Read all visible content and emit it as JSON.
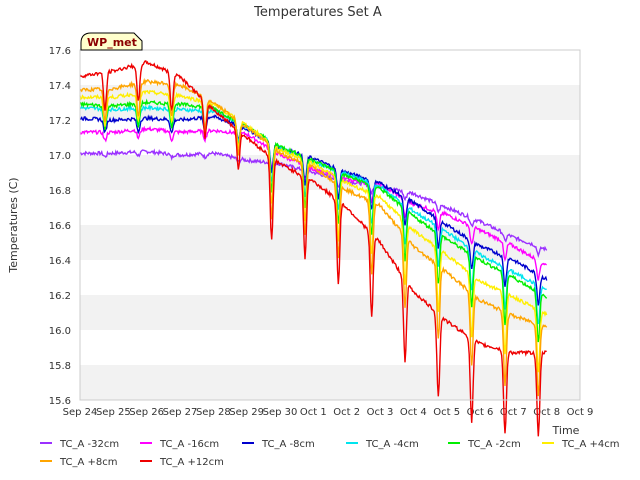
{
  "chart_data": {
    "type": "line",
    "title": "Temperatures Set A",
    "xlabel": "Time",
    "ylabel": "Temperatures (C)",
    "badge": "WP_met",
    "ylim": [
      15.6,
      17.6
    ],
    "yticks": [
      15.6,
      15.8,
      16.0,
      16.2,
      16.4,
      16.6,
      16.8,
      17.0,
      17.2,
      17.4,
      17.6
    ],
    "xlim": [
      "Sep 24",
      "Oct 9"
    ],
    "xtick_labels": [
      "Sep 24",
      "Sep 25",
      "Sep 26",
      "Sep 27",
      "Sep 28",
      "Sep 29",
      "Sep 30",
      "Oct 1",
      "Oct 2",
      "Oct 3",
      "Oct 4",
      "Oct 5",
      "Oct 6",
      "Oct 7",
      "Oct 8",
      "Oct 9"
    ],
    "grid": "horizontal bands",
    "legend_position": "bottom",
    "x_dates": [
      "Sep 24",
      "Sep 25",
      "Sep 26",
      "Sep 27",
      "Sep 28",
      "Sep 29",
      "Sep 30",
      "Oct 1",
      "Oct 2",
      "Oct 3",
      "Oct 4",
      "Oct 5",
      "Oct 6",
      "Oct 7",
      "Oct 8"
    ],
    "series": [
      {
        "name": "TC_A -32cm",
        "color": "#9b30ff",
        "values": [
          17.01,
          17.01,
          17.02,
          17.0,
          17.01,
          16.97,
          16.95,
          16.9,
          16.85,
          16.82,
          16.78,
          16.7,
          16.62,
          16.53,
          16.46
        ]
      },
      {
        "name": "TC_A -16cm",
        "color": "#ff00ff",
        "values": [
          17.13,
          17.13,
          17.15,
          17.13,
          17.14,
          17.12,
          17.0,
          16.92,
          16.86,
          16.83,
          16.72,
          16.66,
          16.57,
          16.48,
          16.37
        ]
      },
      {
        "name": "TC_A -8cm",
        "color": "#0000cd",
        "values": [
          17.21,
          17.2,
          17.21,
          17.2,
          17.22,
          17.15,
          17.04,
          16.98,
          16.9,
          16.84,
          16.73,
          16.6,
          16.48,
          16.4,
          16.29
        ]
      },
      {
        "name": "TC_A -4cm",
        "color": "#00e5ee",
        "values": [
          17.27,
          17.26,
          17.27,
          17.26,
          17.25,
          17.16,
          17.04,
          16.96,
          16.89,
          16.82,
          16.68,
          16.56,
          16.43,
          16.33,
          16.23
        ]
      },
      {
        "name": "TC_A -2cm",
        "color": "#00ee00",
        "values": [
          17.29,
          17.28,
          17.3,
          17.29,
          17.27,
          17.16,
          17.05,
          16.97,
          16.88,
          16.81,
          16.65,
          16.52,
          16.4,
          16.3,
          16.19
        ]
      },
      {
        "name": "TC_A +4cm",
        "color": "#ffee00",
        "values": [
          17.33,
          17.33,
          17.36,
          17.34,
          17.29,
          17.17,
          17.03,
          16.95,
          16.84,
          16.76,
          16.57,
          16.43,
          16.28,
          16.19,
          16.09
        ]
      },
      {
        "name": "TC_A +8cm",
        "color": "#ffa500",
        "values": [
          17.37,
          17.38,
          17.42,
          17.4,
          17.3,
          17.16,
          17.01,
          16.93,
          16.8,
          16.71,
          16.48,
          16.33,
          16.17,
          16.08,
          16.02
        ]
      },
      {
        "name": "TC_A +12cm",
        "color": "#ee0000",
        "values": [
          17.45,
          17.48,
          17.53,
          17.45,
          17.26,
          17.1,
          16.95,
          16.85,
          16.7,
          16.5,
          16.22,
          16.05,
          15.92,
          15.87,
          15.87
        ]
      }
    ]
  }
}
